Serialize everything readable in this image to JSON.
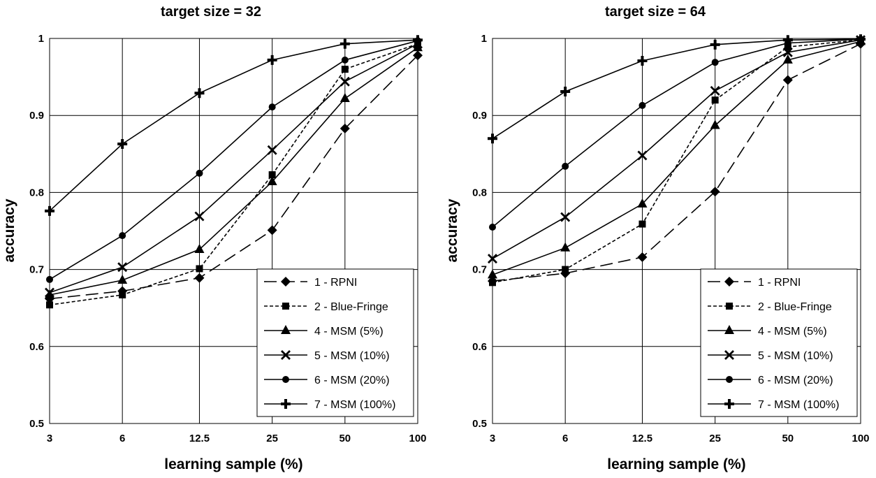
{
  "chart_data": [
    {
      "type": "line",
      "title": "target size = 32",
      "xlabel": "learning sample (%)",
      "ylabel": "accuracy",
      "x_scale": "log",
      "categories": [
        "3",
        "6",
        "12.5",
        "25",
        "50",
        "100"
      ],
      "x": [
        3,
        6,
        12.5,
        25,
        50,
        100
      ],
      "ylim": [
        0.5,
        1
      ],
      "yticks": [
        "0.5",
        "0.6",
        "0.7",
        "0.8",
        "0.9",
        "1"
      ],
      "grid": true,
      "legend_position": "bottom-right",
      "series": [
        {
          "name": "1 - RPNI",
          "marker": "diamond",
          "dash": "long-dash",
          "values": [
            0.662,
            0.672,
            0.689,
            0.751,
            0.883,
            0.978
          ]
        },
        {
          "name": "2 - Blue-Fringe",
          "marker": "square",
          "dash": "short-dash",
          "values": [
            0.654,
            0.667,
            0.701,
            0.823,
            0.96,
            0.993
          ]
        },
        {
          "name": "4 - MSM (5%)",
          "marker": "triangle",
          "dash": "solid",
          "values": [
            0.667,
            0.686,
            0.726,
            0.814,
            0.922,
            0.988
          ]
        },
        {
          "name": "5 - MSM (10%)",
          "marker": "x",
          "dash": "solid",
          "values": [
            0.67,
            0.703,
            0.769,
            0.855,
            0.944,
            0.993
          ]
        },
        {
          "name": "6 - MSM (20%)",
          "marker": "circle",
          "dash": "solid",
          "values": [
            0.687,
            0.744,
            0.825,
            0.911,
            0.972,
            0.997
          ]
        },
        {
          "name": "7 - MSM (100%)",
          "marker": "plus",
          "dash": "solid",
          "values": [
            0.776,
            0.863,
            0.929,
            0.972,
            0.993,
            0.998
          ]
        }
      ]
    },
    {
      "type": "line",
      "title": "target size = 64",
      "xlabel": "learning sample (%)",
      "ylabel": "accuracy",
      "x_scale": "log",
      "categories": [
        "3",
        "6",
        "12.5",
        "25",
        "50",
        "100"
      ],
      "x": [
        3,
        6,
        12.5,
        25,
        50,
        100
      ],
      "ylim": [
        0.5,
        1
      ],
      "yticks": [
        "0.5",
        "0.6",
        "0.7",
        "0.8",
        "0.9",
        "1"
      ],
      "grid": true,
      "legend_position": "bottom-right",
      "series": [
        {
          "name": "1 - RPNI",
          "marker": "diamond",
          "dash": "long-dash",
          "values": [
            0.685,
            0.695,
            0.716,
            0.801,
            0.946,
            0.993
          ]
        },
        {
          "name": "2 - Blue-Fringe",
          "marker": "square",
          "dash": "short-dash",
          "values": [
            0.683,
            0.7,
            0.759,
            0.92,
            0.989,
            0.998
          ]
        },
        {
          "name": "4 - MSM (5%)",
          "marker": "triangle",
          "dash": "solid",
          "values": [
            0.693,
            0.728,
            0.785,
            0.887,
            0.972,
            0.996
          ]
        },
        {
          "name": "5 - MSM (10%)",
          "marker": "x",
          "dash": "solid",
          "values": [
            0.714,
            0.768,
            0.848,
            0.932,
            0.982,
            0.998
          ]
        },
        {
          "name": "6 - MSM (20%)",
          "marker": "circle",
          "dash": "solid",
          "values": [
            0.755,
            0.834,
            0.913,
            0.969,
            0.994,
            0.999
          ]
        },
        {
          "name": "7 - MSM (100%)",
          "marker": "plus",
          "dash": "solid",
          "values": [
            0.87,
            0.931,
            0.971,
            0.992,
            0.998,
            0.999
          ]
        }
      ]
    }
  ]
}
